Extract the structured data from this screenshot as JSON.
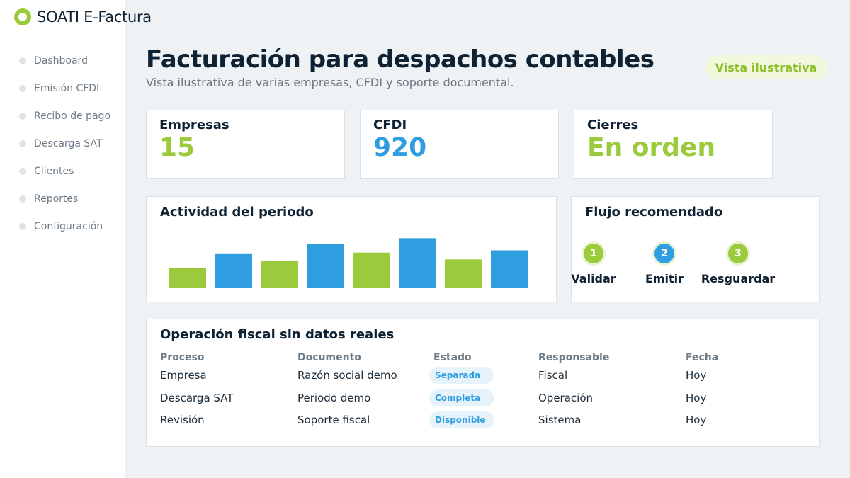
{
  "app": {
    "name": "SOATI E-Factura"
  },
  "sidebar": {
    "items": [
      {
        "label": "Dashboard"
      },
      {
        "label": "Emisión CFDI"
      },
      {
        "label": "Recibo de pago"
      },
      {
        "label": "Descarga SAT"
      },
      {
        "label": "Clientes"
      },
      {
        "label": "Reportes"
      },
      {
        "label": "Configuración"
      }
    ]
  },
  "header": {
    "title": "Facturación para despachos contables",
    "subtitle": "Vista ilustrativa de varias empresas, CFDI y soporte documental.",
    "badge": "Vista ilustrativa"
  },
  "stats": [
    {
      "label": "Empresas",
      "value": "15",
      "color": "#9bcb3c"
    },
    {
      "label": "CFDI",
      "value": "920",
      "color": "#2f9ee0"
    },
    {
      "label": "Cierres",
      "value": "En orden",
      "color": "#9bcb3c"
    }
  ],
  "activity": {
    "title": "Actividad del periodo"
  },
  "chart_data": {
    "type": "bar",
    "values": [
      26,
      45,
      35,
      57,
      46,
      65,
      37,
      49
    ],
    "colors": [
      "#9bcb3c",
      "#2f9ee0",
      "#9bcb3c",
      "#2f9ee0",
      "#9bcb3c",
      "#2f9ee0",
      "#9bcb3c",
      "#2f9ee0"
    ],
    "ylim": [
      0,
      70
    ],
    "grid": false,
    "title": "",
    "xlabel": "",
    "ylabel": ""
  },
  "flow": {
    "title": "Flujo recomendado",
    "steps": [
      {
        "number": "1",
        "label": "Validar",
        "color": "#9bcb3c"
      },
      {
        "number": "2",
        "label": "Emitir",
        "color": "#2f9ee0"
      },
      {
        "number": "3",
        "label": "Resguardar",
        "color": "#9bcb3c"
      }
    ]
  },
  "operations": {
    "title": "Operación fiscal sin datos reales",
    "columns": [
      "Proceso",
      "Documento",
      "Estado",
      "Responsable",
      "Fecha"
    ],
    "rows": [
      {
        "proceso": "Empresa",
        "documento": "Razón social demo",
        "estado": "Separada",
        "responsable": "Fiscal",
        "fecha": "Hoy"
      },
      {
        "proceso": "Descarga SAT",
        "documento": "Periodo demo",
        "estado": "Completa",
        "responsable": "Operación",
        "fecha": "Hoy"
      },
      {
        "proceso": "Revisión",
        "documento": "Soporte fiscal",
        "estado": "Disponible",
        "responsable": "Sistema",
        "fecha": "Hoy"
      }
    ]
  }
}
